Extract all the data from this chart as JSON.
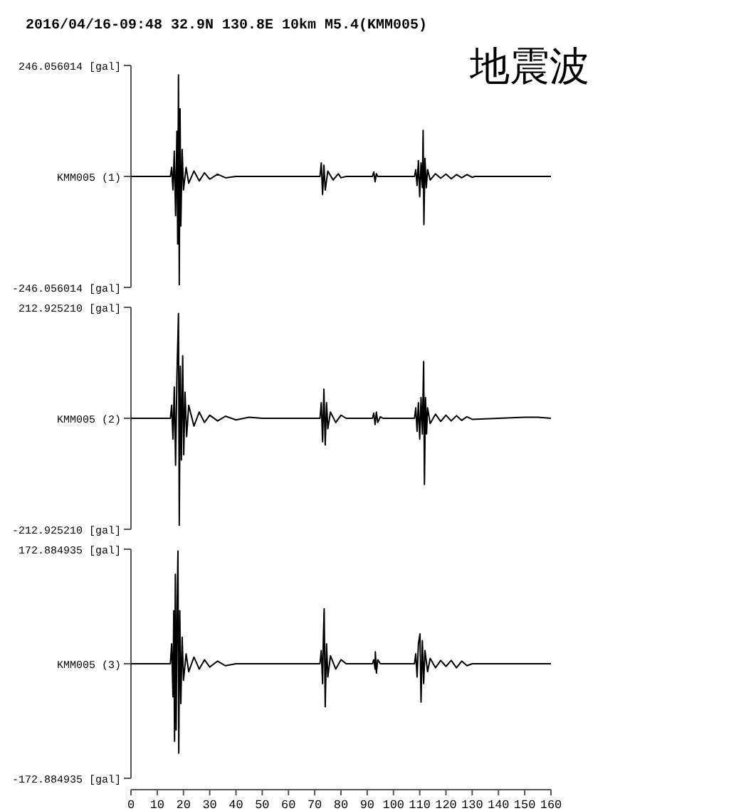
{
  "chart_data": [
    {
      "type": "line",
      "title": "2016/04/16-09:48 32.9N 130.8E 10km M5.4(KMM005)",
      "annotations": [
        "地震波"
      ],
      "xlim": [
        0,
        160
      ],
      "ylim": [
        -246.056014,
        246.056014
      ],
      "yticks": [
        {
          "value": 246.056014,
          "label": "246.056014 [gal]"
        },
        {
          "value": 0,
          "label": "KMM005 (1)"
        },
        {
          "value": -246.056014,
          "label": "-246.056014 [gal]"
        }
      ],
      "tick_labels": "y",
      "series": [
        {
          "color": "#000000",
          "x": [
            0,
            15,
            15.5,
            16,
            16.5,
            17,
            17.5,
            17.8,
            18.1,
            18.4,
            18.7,
            19,
            19.5,
            20,
            21,
            22,
            24,
            26,
            28,
            30,
            33,
            36,
            40,
            72,
            72.5,
            73,
            73.5,
            74,
            75,
            77,
            79,
            80,
            82,
            92,
            92.5,
            93,
            93.5,
            94,
            108,
            108.5,
            109,
            109.5,
            110,
            110.5,
            111,
            111.3,
            111.6,
            112,
            112.5,
            113,
            114,
            116,
            118,
            120,
            122,
            124,
            126,
            128,
            130,
            131,
            160
          ],
          "values": [
            0,
            0,
            20,
            -30,
            56,
            -87,
            100,
            -150,
            225,
            -240,
            150,
            -110,
            60,
            -30,
            20,
            -15,
            12,
            -10,
            8,
            -6,
            5,
            -3,
            0,
            0,
            30,
            -40,
            25,
            -30,
            12,
            -8,
            6,
            -3,
            0,
            0,
            10,
            -12,
            6,
            0,
            0,
            15,
            -20,
            35,
            -45,
            30,
            -25,
            102,
            -107,
            40,
            -25,
            15,
            -8,
            6,
            -4,
            5,
            -5,
            4,
            -3,
            4,
            -2,
            0,
            0
          ]
        }
      ]
    },
    {
      "type": "line",
      "xlim": [
        0,
        160
      ],
      "ylim": [
        -212.92521,
        212.92521
      ],
      "yticks": [
        {
          "value": 212.92521,
          "label": "212.925210 [gal]"
        },
        {
          "value": 0,
          "label": "KMM005 (2)"
        },
        {
          "value": -212.92521,
          "label": "-212.925210 [gal]"
        }
      ],
      "tick_labels": "y",
      "series": [
        {
          "color": "#000000",
          "x": [
            0,
            15,
            15.5,
            16,
            16.5,
            17,
            17.5,
            18.1,
            18.4,
            18.8,
            19.2,
            19.7,
            20.1,
            20.6,
            21.2,
            22,
            24,
            26,
            28,
            30,
            33,
            36,
            40,
            45,
            50,
            72,
            72.5,
            73,
            73.5,
            74,
            74.5,
            75,
            76,
            78,
            80,
            82,
            92,
            92.5,
            93,
            93.5,
            94,
            95,
            96,
            108,
            108.5,
            109,
            109.5,
            110,
            110.5,
            111,
            111.5,
            111.8,
            112.2,
            112.6,
            113,
            114,
            116,
            118,
            120,
            122,
            124,
            126,
            128,
            130,
            140,
            150,
            155,
            160
          ],
          "values": [
            0,
            0,
            25,
            -40,
            60,
            -90,
            80,
            201,
            -205,
            100,
            -80,
            120,
            -70,
            50,
            -35,
            25,
            -15,
            12,
            -8,
            6,
            -5,
            4,
            -3,
            2,
            0,
            0,
            30,
            -45,
            56,
            -51,
            30,
            -20,
            12,
            -8,
            6,
            0,
            0,
            10,
            -12,
            12,
            -8,
            3,
            0,
            0,
            20,
            -25,
            30,
            -40,
            40,
            -30,
            109,
            -127,
            40,
            -30,
            20,
            -10,
            8,
            -6,
            6,
            -5,
            5,
            -4,
            3,
            -2,
            0,
            2,
            2,
            0
          ]
        }
      ]
    },
    {
      "type": "line",
      "xlim": [
        0,
        160
      ],
      "xticks": [
        0,
        10,
        20,
        30,
        40,
        50,
        60,
        70,
        80,
        90,
        100,
        110,
        120,
        130,
        140,
        150,
        160
      ],
      "ylim": [
        -172.884935,
        172.884935
      ],
      "yticks": [
        {
          "value": 172.884935,
          "label": "172.884935 [gal]"
        },
        {
          "value": 0,
          "label": "KMM005 (3)"
        },
        {
          "value": -172.884935,
          "label": "-172.884935 [gal]"
        }
      ],
      "series": [
        {
          "color": "#000000",
          "x": [
            0,
            15,
            15.5,
            16,
            16.3,
            16.6,
            16.9,
            17.2,
            17.6,
            17.9,
            18.2,
            18.6,
            19,
            19.5,
            20,
            21,
            22,
            24,
            26,
            28,
            30,
            33,
            36,
            40,
            72,
            72.5,
            73,
            73.3,
            73.6,
            74,
            74.5,
            75,
            76,
            78,
            80,
            82,
            92,
            92.5,
            93,
            93.1,
            93.5,
            94,
            95,
            108,
            108.5,
            109,
            109.5,
            110.1,
            110.5,
            111,
            111.5,
            112,
            113,
            114,
            116,
            118,
            120,
            122,
            124,
            126,
            128,
            130,
            160
          ],
          "values": [
            0,
            0,
            30,
            -50,
            80,
            -117,
            135,
            -100,
            90,
            170,
            -135,
            80,
            -60,
            40,
            -25,
            15,
            -12,
            10,
            -8,
            6,
            -5,
            4,
            -3,
            0,
            0,
            20,
            -30,
            40,
            83,
            -65,
            30,
            -20,
            12,
            -8,
            6,
            0,
            0,
            6,
            -8,
            18,
            -14,
            6,
            0,
            0,
            15,
            -20,
            30,
            45,
            -58,
            35,
            -30,
            20,
            -12,
            8,
            -6,
            5,
            -4,
            5,
            -6,
            4,
            -3,
            0,
            0
          ]
        }
      ]
    }
  ]
}
